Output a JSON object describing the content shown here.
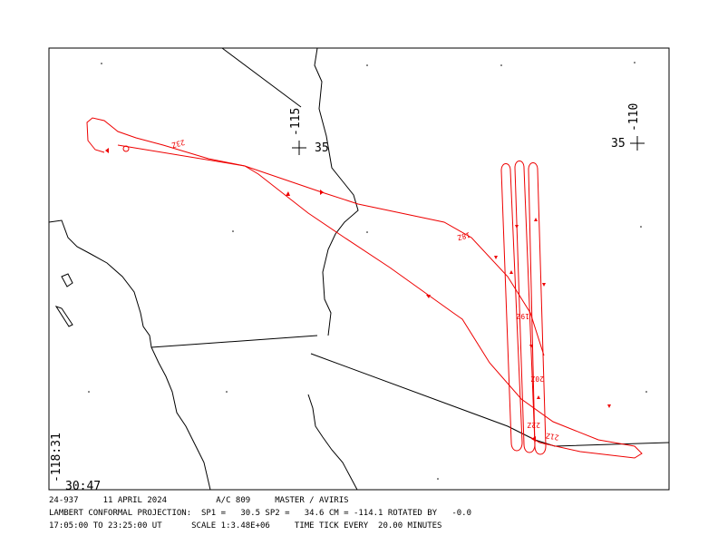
{
  "map": {
    "corner_longitude": "-118:31",
    "corner_latitude": "30:47",
    "grid_labels": [
      {
        "lon": "-115",
        "lat": "35"
      },
      {
        "lon": "-110",
        "lat": "35"
      }
    ],
    "time_ticks": [
      "23Z",
      "18Z",
      "19Z",
      "20Z",
      "22Z",
      "21Z"
    ]
  },
  "footer": {
    "lines": [
      "24-937     11 APRIL 2024          A/C 809     MASTER / AVIRIS",
      "LAMBERT CONFORMAL PROJECTION:  SP1 =   30.5 SP2 =   34.6 CM = -114.1 ROTATED BY   -0.0",
      "17:05:00 TO 23:25:00 UT      SCALE 1:3.48E+06     TIME TICK EVERY  20.00 MINUTES"
    ]
  }
}
